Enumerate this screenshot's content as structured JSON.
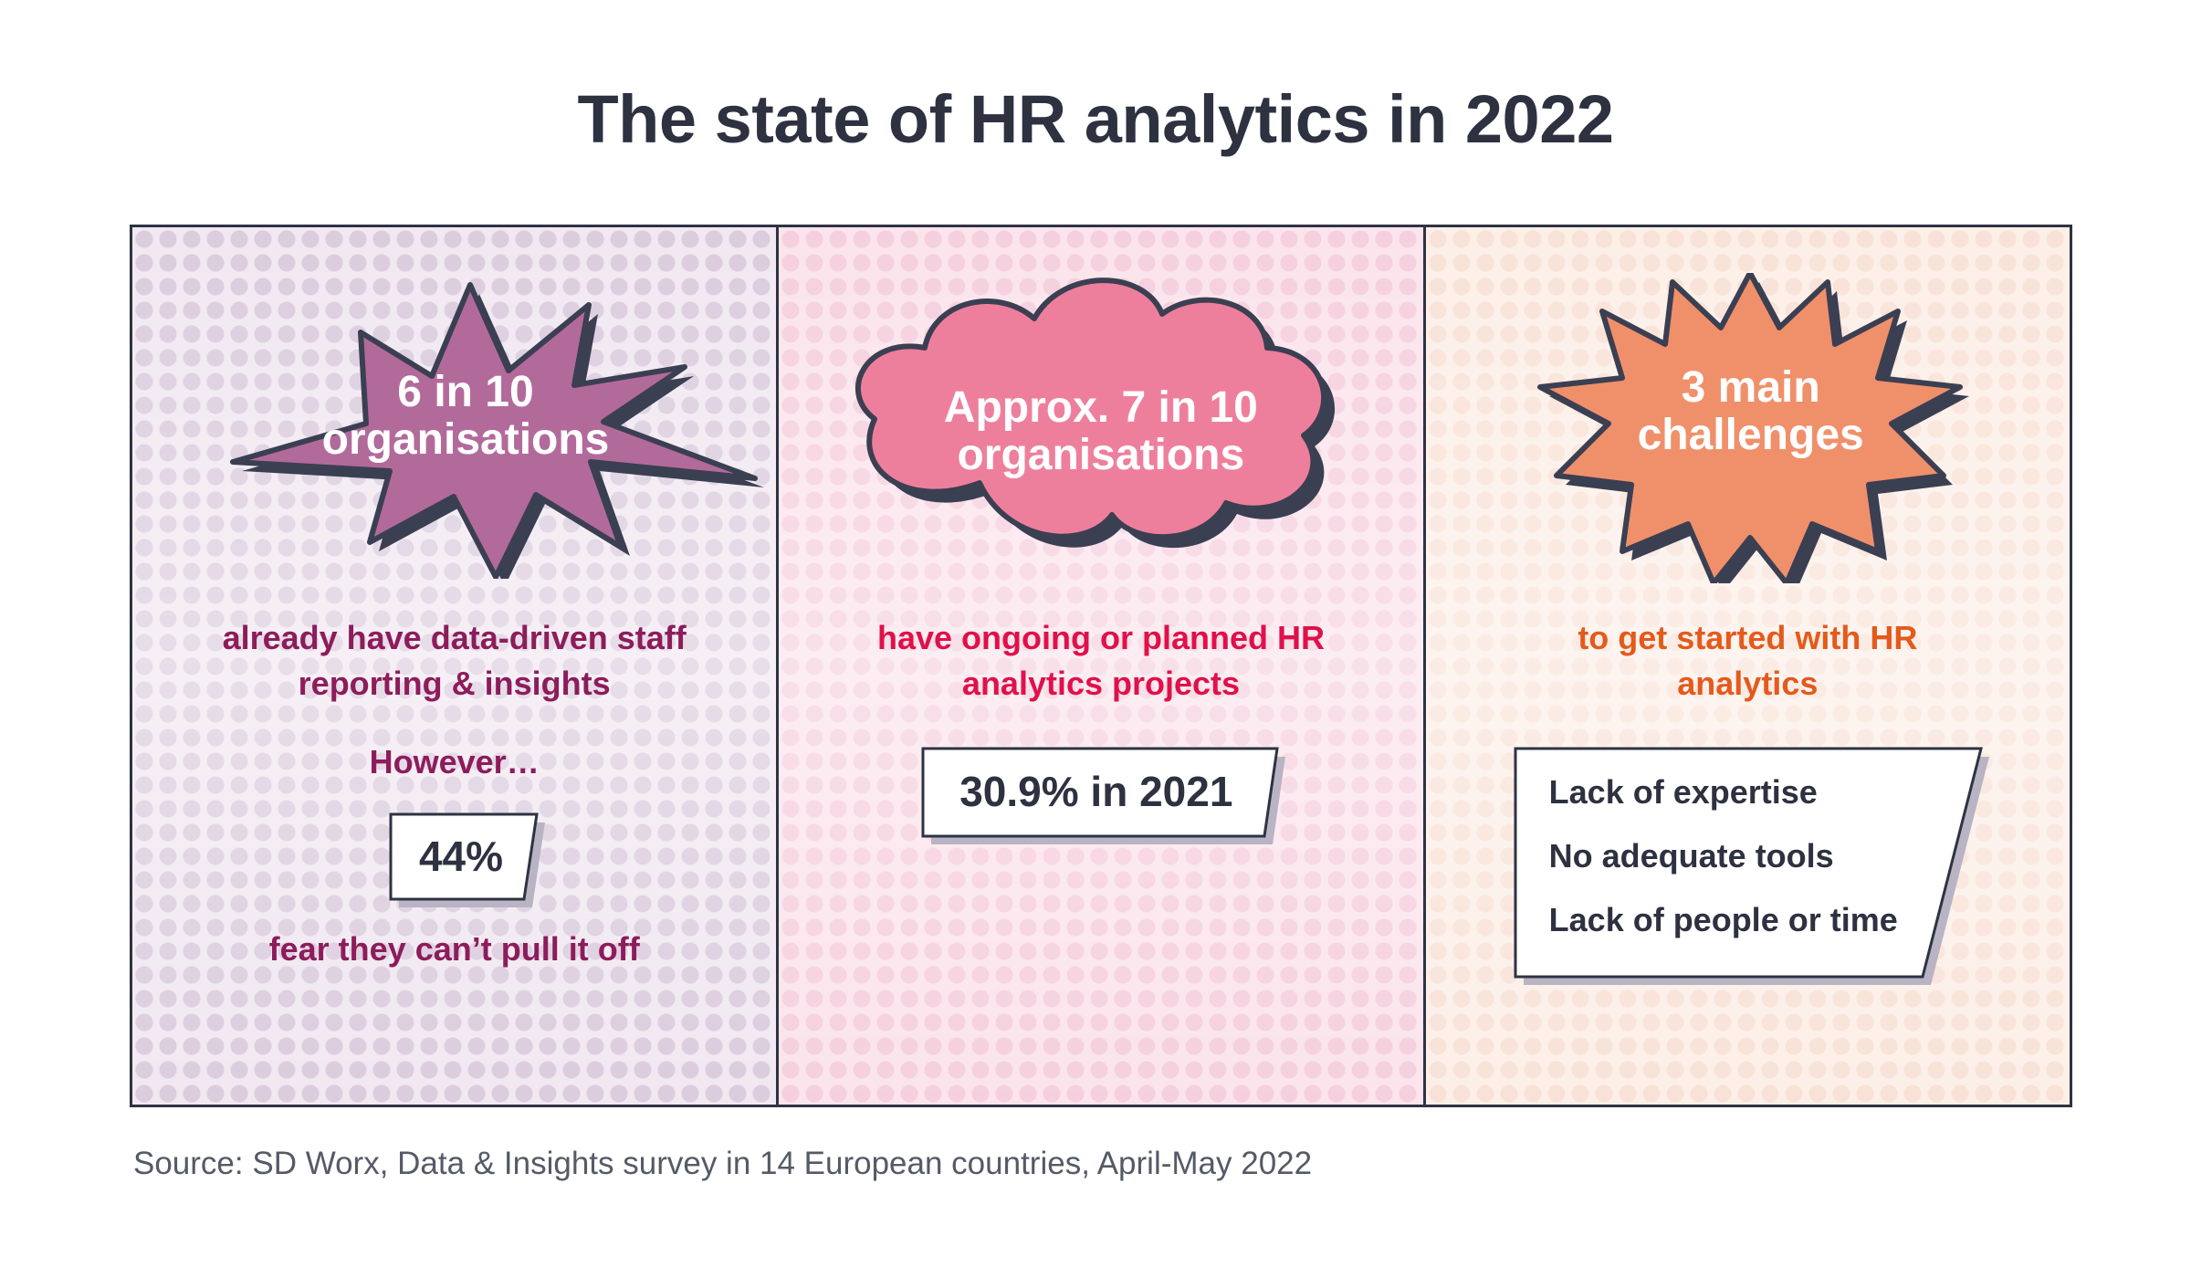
{
  "title": "The state of HR analytics in 2022",
  "panels": [
    {
      "headline_line1": "6 in 10",
      "headline_line2": "organisations",
      "description_line1": "already have data-driven staff",
      "description_line2": "reporting & insights",
      "however": "However…",
      "stat": "44%",
      "stat_caption": "fear they can’t pull it off",
      "shape_color": "#b26a9b"
    },
    {
      "headline_line1": "Approx. 7 in 10",
      "headline_line2": "organisations",
      "description_line1": "have ongoing or planned HR",
      "description_line2": "analytics projects",
      "stat": "30.9% in 2021",
      "shape_color": "#ee7f9c"
    },
    {
      "headline_line1": "3 main",
      "headline_line2": "challenges",
      "description_line1": "to get started with HR",
      "description_line2": "analytics",
      "challenges": [
        "Lack of expertise",
        "No adequate tools",
        "Lack of people or time"
      ],
      "shape_color": "#f0906a"
    }
  ],
  "source": "Source: SD Worx, Data & Insights survey in 14 European countries, April-May 2022"
}
